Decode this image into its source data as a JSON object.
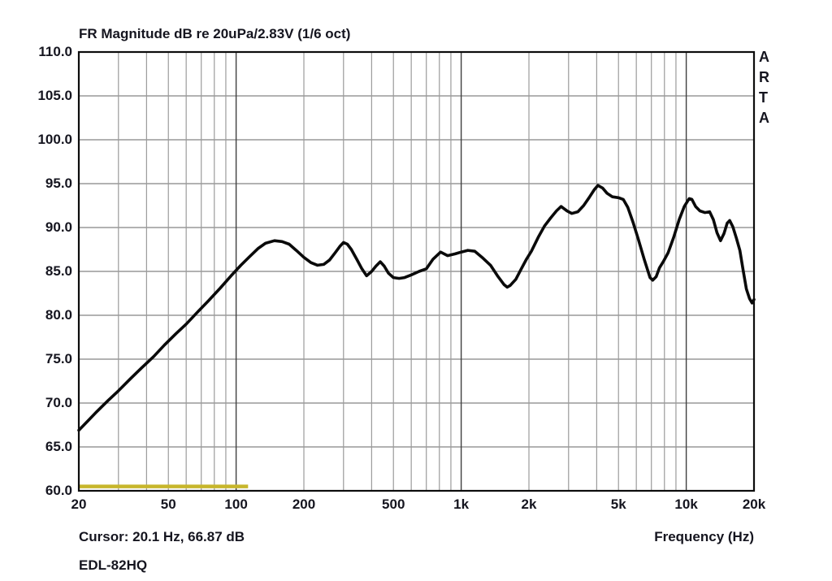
{
  "header": {
    "title": "FR Magnitude dB re 20uPa/2.83V (1/6 oct)"
  },
  "footer": {
    "cursor_readout": "Cursor: 20.1 Hz, 66.87 dB",
    "frequency_axis_label": "Frequency (Hz)",
    "series_label": "EDL-82HQ"
  },
  "branding": {
    "name": "ARTA",
    "letters": [
      "A",
      "R",
      "T",
      "A"
    ]
  },
  "colors": {
    "background": "#ffffff",
    "text": "#15151f",
    "curve": "#0a0a0a",
    "cursor_marker": "#c7b62c",
    "grid_minor": "#9b9b9b",
    "grid_horizontal": "#858585",
    "grid_decade": "#3f3f3f",
    "plot_border": "#0c0c0c"
  },
  "axes": {
    "y": {
      "tick_labels": [
        "110.0",
        "105.0",
        "100.0",
        "95.0",
        "90.0",
        "85.0",
        "80.0",
        "75.0",
        "70.0",
        "65.0",
        "60.0"
      ],
      "tick_values": [
        110,
        105,
        100,
        95,
        90,
        85,
        80,
        75,
        70,
        65,
        60
      ]
    },
    "x": {
      "ticks": [
        {
          "label": "20",
          "hz": 20
        },
        {
          "label": "50",
          "hz": 50
        },
        {
          "label": "100",
          "hz": 100
        },
        {
          "label": "200",
          "hz": 200
        },
        {
          "label": "500",
          "hz": 500
        },
        {
          "label": "1k",
          "hz": 1000
        },
        {
          "label": "2k",
          "hz": 2000
        },
        {
          "label": "5k",
          "hz": 5000
        },
        {
          "label": "10k",
          "hz": 10000
        },
        {
          "label": "20k",
          "hz": 20000
        }
      ],
      "minor_gridlines": [
        30,
        40,
        50,
        60,
        70,
        80,
        90,
        200,
        300,
        400,
        500,
        600,
        700,
        800,
        900,
        2000,
        3000,
        4000,
        5000,
        6000,
        7000,
        8000,
        9000
      ],
      "decade_gridlines": [
        100,
        1000,
        10000
      ]
    }
  },
  "chart_data": {
    "type": "line",
    "title": "FR Magnitude dB re 20uPa/2.83V (1/6 oct)",
    "xlabel": "Frequency (Hz)",
    "ylabel": "Magnitude dB re 20uPa/2.83V",
    "x_scale": "log",
    "xlim": [
      20,
      20000
    ],
    "ylim": [
      60,
      110
    ],
    "grid": true,
    "smoothing": "1/6 oct",
    "cursor": {
      "frequency_hz": 20.1,
      "level_db": 66.87
    },
    "cursor_marker": {
      "from_hz": 20,
      "to_hz": 113,
      "level_db": 60.5,
      "color": "#c7b62c"
    },
    "series": [
      {
        "name": "EDL-82HQ",
        "color": "#0a0a0a",
        "points": [
          [
            20,
            66.9
          ],
          [
            22,
            68.0
          ],
          [
            24,
            69.0
          ],
          [
            27,
            70.3
          ],
          [
            30,
            71.4
          ],
          [
            34,
            72.8
          ],
          [
            38,
            74.0
          ],
          [
            43,
            75.3
          ],
          [
            48,
            76.6
          ],
          [
            54,
            77.9
          ],
          [
            60,
            79.0
          ],
          [
            67,
            80.3
          ],
          [
            75,
            81.6
          ],
          [
            85,
            83.1
          ],
          [
            95,
            84.5
          ],
          [
            105,
            85.7
          ],
          [
            115,
            86.7
          ],
          [
            125,
            87.6
          ],
          [
            135,
            88.2
          ],
          [
            148,
            88.5
          ],
          [
            160,
            88.4
          ],
          [
            172,
            88.1
          ],
          [
            185,
            87.4
          ],
          [
            200,
            86.6
          ],
          [
            215,
            86.0
          ],
          [
            230,
            85.7
          ],
          [
            245,
            85.8
          ],
          [
            260,
            86.3
          ],
          [
            275,
            87.1
          ],
          [
            290,
            87.9
          ],
          [
            300,
            88.3
          ],
          [
            312,
            88.1
          ],
          [
            325,
            87.5
          ],
          [
            345,
            86.3
          ],
          [
            362,
            85.3
          ],
          [
            380,
            84.5
          ],
          [
            400,
            85.0
          ],
          [
            418,
            85.6
          ],
          [
            437,
            86.1
          ],
          [
            455,
            85.6
          ],
          [
            475,
            84.8
          ],
          [
            500,
            84.3
          ],
          [
            530,
            84.2
          ],
          [
            560,
            84.3
          ],
          [
            600,
            84.6
          ],
          [
            650,
            85.0
          ],
          [
            700,
            85.3
          ],
          [
            750,
            86.4
          ],
          [
            810,
            87.2
          ],
          [
            870,
            86.8
          ],
          [
            940,
            87.0
          ],
          [
            1000,
            87.2
          ],
          [
            1070,
            87.4
          ],
          [
            1150,
            87.3
          ],
          [
            1250,
            86.5
          ],
          [
            1350,
            85.7
          ],
          [
            1450,
            84.5
          ],
          [
            1550,
            83.5
          ],
          [
            1600,
            83.2
          ],
          [
            1650,
            83.4
          ],
          [
            1750,
            84.1
          ],
          [
            1850,
            85.3
          ],
          [
            1950,
            86.4
          ],
          [
            2050,
            87.3
          ],
          [
            2200,
            88.9
          ],
          [
            2350,
            90.2
          ],
          [
            2500,
            91.1
          ],
          [
            2650,
            91.9
          ],
          [
            2780,
            92.4
          ],
          [
            2950,
            91.9
          ],
          [
            3100,
            91.6
          ],
          [
            3300,
            91.8
          ],
          [
            3500,
            92.5
          ],
          [
            3700,
            93.4
          ],
          [
            3900,
            94.3
          ],
          [
            4050,
            94.8
          ],
          [
            4250,
            94.5
          ],
          [
            4450,
            93.9
          ],
          [
            4700,
            93.5
          ],
          [
            5000,
            93.4
          ],
          [
            5250,
            93.2
          ],
          [
            5500,
            92.3
          ],
          [
            5800,
            90.6
          ],
          [
            6100,
            88.8
          ],
          [
            6500,
            86.4
          ],
          [
            6900,
            84.3
          ],
          [
            7100,
            84.0
          ],
          [
            7350,
            84.4
          ],
          [
            7600,
            85.4
          ],
          [
            7900,
            86.1
          ],
          [
            8300,
            87.1
          ],
          [
            8800,
            88.9
          ],
          [
            9300,
            90.9
          ],
          [
            9800,
            92.4
          ],
          [
            10300,
            93.3
          ],
          [
            10600,
            93.2
          ],
          [
            11000,
            92.4
          ],
          [
            11500,
            91.9
          ],
          [
            12100,
            91.7
          ],
          [
            12700,
            91.8
          ],
          [
            13200,
            90.9
          ],
          [
            13700,
            89.4
          ],
          [
            14200,
            88.5
          ],
          [
            14700,
            89.3
          ],
          [
            15200,
            90.5
          ],
          [
            15600,
            90.8
          ],
          [
            16100,
            90.1
          ],
          [
            16700,
            88.8
          ],
          [
            17300,
            87.4
          ],
          [
            17900,
            85.1
          ],
          [
            18500,
            83.0
          ],
          [
            19100,
            81.9
          ],
          [
            19600,
            81.4
          ],
          [
            20000,
            81.8
          ]
        ]
      }
    ]
  }
}
